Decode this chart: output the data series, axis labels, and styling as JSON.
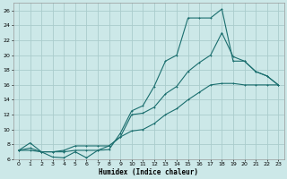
{
  "xlabel": "Humidex (Indice chaleur)",
  "bg_color": "#cce8e8",
  "grid_color": "#aacccc",
  "line_color": "#1a6e6e",
  "xlim": [
    -0.5,
    23.5
  ],
  "ylim": [
    6,
    27
  ],
  "xticks": [
    0,
    1,
    2,
    3,
    4,
    5,
    6,
    7,
    8,
    9,
    10,
    11,
    12,
    13,
    14,
    15,
    16,
    17,
    18,
    19,
    20,
    21,
    22,
    23
  ],
  "yticks": [
    6,
    8,
    10,
    12,
    14,
    16,
    18,
    20,
    22,
    24,
    26
  ],
  "line1_x": [
    0,
    1,
    2,
    3,
    4,
    5,
    6,
    7,
    8,
    9,
    10,
    11,
    12,
    13,
    14,
    15,
    16,
    17,
    18,
    19,
    20,
    21,
    22,
    23
  ],
  "line1_y": [
    7.2,
    8.2,
    7.0,
    6.3,
    6.2,
    7.0,
    6.2,
    7.2,
    7.3,
    9.5,
    12.5,
    13.2,
    15.8,
    19.2,
    20.0,
    25.0,
    25.0,
    25.0,
    26.2,
    19.2,
    19.2,
    17.8,
    17.2,
    16.0
  ],
  "line2_x": [
    0,
    1,
    2,
    3,
    4,
    5,
    6,
    7,
    8,
    9,
    10,
    11,
    12,
    13,
    14,
    15,
    16,
    17,
    18,
    19,
    20,
    21,
    22,
    23
  ],
  "line2_y": [
    7.2,
    7.5,
    7.0,
    7.0,
    7.2,
    7.8,
    7.8,
    7.8,
    7.8,
    9.0,
    12.0,
    12.2,
    13.0,
    14.8,
    15.8,
    17.8,
    19.0,
    20.0,
    23.0,
    19.8,
    19.2,
    17.8,
    17.2,
    16.0
  ],
  "line3_x": [
    0,
    1,
    2,
    3,
    4,
    5,
    6,
    7,
    8,
    9,
    10,
    11,
    12,
    13,
    14,
    15,
    16,
    17,
    18,
    19,
    20,
    21,
    22,
    23
  ],
  "line3_y": [
    7.2,
    7.2,
    7.0,
    7.0,
    7.0,
    7.2,
    7.2,
    7.2,
    7.8,
    9.0,
    9.8,
    10.0,
    10.8,
    12.0,
    12.8,
    14.0,
    15.0,
    16.0,
    16.2,
    16.2,
    16.0,
    16.0,
    16.0,
    16.0
  ]
}
